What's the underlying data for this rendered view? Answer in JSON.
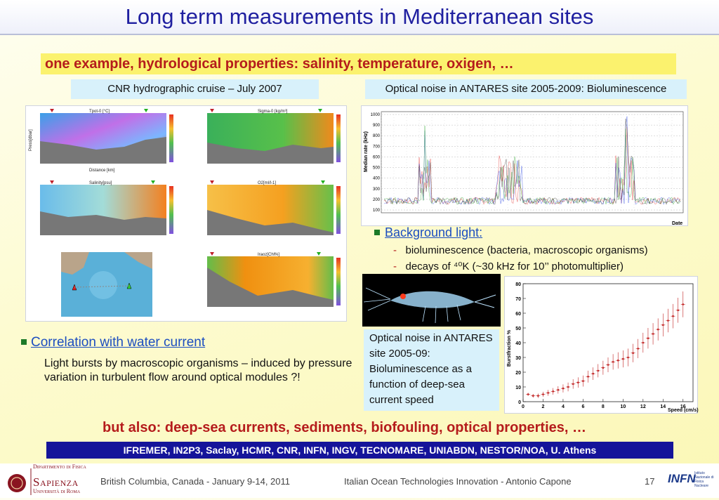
{
  "title": "Long term measurements in Mediterranean sites",
  "subtitle": "one example, hydrological properties: salinity, temperature, oxigen, …",
  "captions": {
    "left": "CNR hydrographic cruise – July 2007",
    "right": "Optical noise in ANTARES site 2005-2009: Bioluminescence"
  },
  "left_panels": [
    {
      "title": "Tpot-0 [°C]"
    },
    {
      "title": "Sigma-0 [kg/m³]"
    },
    {
      "title": "Salinity[psu]"
    },
    {
      "title": "O2[ml/l-1]"
    },
    {
      "title": "Iraoz[Chl%]"
    }
  ],
  "left_panel_axis": {
    "ylabel": "Press[dbar]",
    "xlabel": "Distance [km]"
  },
  "rate_chart": {
    "ylabel": "Median rate (kHz)",
    "xlabel": "Date",
    "y_ticks": [
      "1000",
      "900",
      "800",
      "700",
      "600",
      "500",
      "400",
      "300",
      "200",
      "100"
    ]
  },
  "background_light": {
    "heading": "Background light:",
    "items": [
      "bioluminescence (bacteria, macroscopic organisms)",
      "decays of ⁴⁰K (~30 kHz for 10’’ photomultiplier)"
    ]
  },
  "box_text": "Optical noise in ANTARES site 2005-09: Bioluminescence as a function of deep-sea current speed",
  "chart_data": {
    "type": "scatter",
    "title": "",
    "xlabel": "Speed (cm/s)",
    "ylabel": "Burstfraction %",
    "xlim": [
      0,
      17
    ],
    "ylim": [
      0,
      80
    ],
    "x_ticks": [
      0,
      2,
      4,
      6,
      8,
      10,
      12,
      14,
      16
    ],
    "y_ticks": [
      0,
      10,
      20,
      30,
      40,
      50,
      60,
      70,
      80
    ],
    "x": [
      0.5,
      1,
      1.5,
      2,
      2.5,
      3,
      3.5,
      4,
      4.5,
      5,
      5.5,
      6,
      6.5,
      7,
      7.5,
      8,
      8.5,
      9,
      9.5,
      10,
      10.5,
      11,
      11.5,
      12,
      12.5,
      13,
      13.5,
      14,
      14.5,
      15,
      15.5,
      16
    ],
    "y": [
      5,
      4,
      4,
      5,
      6,
      7,
      8,
      9,
      10,
      12,
      13,
      14,
      17,
      19,
      21,
      23,
      25,
      27,
      28,
      29,
      30,
      33,
      36,
      40,
      43,
      46,
      49,
      52,
      55,
      58,
      62,
      66
    ]
  },
  "correlation": {
    "heading": "Correlation with water current",
    "text": "Light bursts by macroscopic organisms – induced by pressure variation in turbulent flow around optical modules ?!"
  },
  "also": "but also: deep-sea currents, sediments, biofouling, optical properties, …",
  "partners": "IFREMER, IN2P3, Saclay, HCMR, CNR, INFN, INGV, TECNOMARE, UNIABDN, NESTOR/NOA, U. Athens",
  "footer": {
    "dept": "Dipartimento di Fisica",
    "university": "Sapienza",
    "university_sub": "Università di Roma",
    "event": "British Columbia, Canada  -  January 9-14, 2011",
    "talk": "Italian Ocean Technologies Innovation  -  Antonio Capone",
    "page": "17",
    "infn": "INFN",
    "infn_sub": "Istituto Nazionale di Fisica Nucleare"
  },
  "colors": {
    "title": "#1f1fa0",
    "highlight": "#fbf26e",
    "accent_red": "#b51c1c",
    "caption_bg": "#d8f1fb",
    "band": "#15149a"
  }
}
